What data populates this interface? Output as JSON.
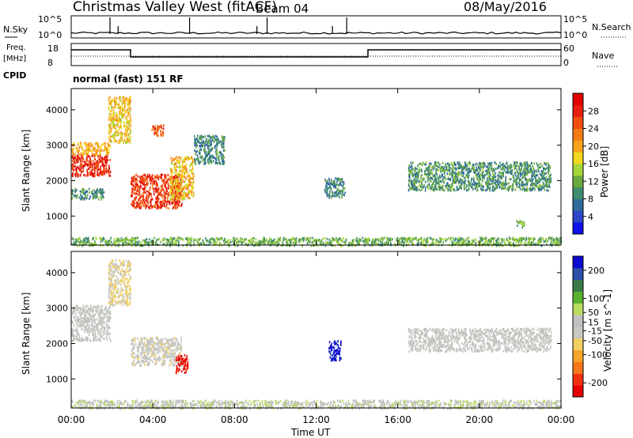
{
  "header": {
    "title": "Christmas Valley West (fitACF)",
    "beam": "Beam 04",
    "date": "08/May/2016"
  },
  "panels": {
    "sky": {
      "label": "N.Sky",
      "y_ticks": [
        "10^5",
        "10^0"
      ],
      "right_ticks": [
        "10^5",
        "10^0"
      ],
      "right_label": "N.Search"
    },
    "freq": {
      "label": "Freq.",
      "units": "[MHz]",
      "left_ticks": [
        "18",
        "8"
      ],
      "right_ticks": [
        "60",
        "0"
      ],
      "right_label": "Nave",
      "cpid_label": "CPID",
      "cpid_text": "normal (fast) 151 RF"
    }
  },
  "colors": {
    "power_scale": [
      "#1010e8",
      "#2c46c8",
      "#2f6a98",
      "#3f8c70",
      "#6aaa3e",
      "#a6d63a",
      "#f2d81e",
      "#f7a21c",
      "#f47a14",
      "#f24e0e",
      "#e81e0e",
      "#e00000"
    ],
    "velocity_scale": [
      "#e60000",
      "#f03010",
      "#f7781a",
      "#f7a428",
      "#f2d060",
      "#c8c8c0",
      "#c0c0c0",
      "#b8dc60",
      "#5ab030",
      "#3c7a46",
      "#2c50a8",
      "#0c0cd0"
    ]
  },
  "chart_data": [
    {
      "type": "heatmap",
      "title": "Power",
      "parameter": "Power",
      "ylabel": "Slant Range [km]",
      "yticks": [
        1000,
        2000,
        3000,
        4000
      ],
      "ylim": [
        180,
        4600
      ],
      "xlim": [
        0,
        24
      ],
      "colorbar": {
        "label": "Power [dB]",
        "ticks": [
          4,
          8,
          12,
          16,
          20,
          24,
          28
        ],
        "range": [
          0,
          32
        ]
      },
      "regions": [
        {
          "t": [
            0.0,
            1.9
          ],
          "r": [
            2150,
            2750
          ],
          "value": 28
        },
        {
          "t": [
            0.0,
            1.9
          ],
          "r": [
            2750,
            3100
          ],
          "value": 20
        },
        {
          "t": [
            0.0,
            1.6
          ],
          "r": [
            1500,
            1800
          ],
          "value": 9
        },
        {
          "t": [
            1.8,
            2.9
          ],
          "r": [
            3100,
            4400
          ],
          "value": 18
        },
        {
          "t": [
            2.9,
            5.4
          ],
          "r": [
            1250,
            2200
          ],
          "value": 27
        },
        {
          "t": [
            4.8,
            6.0
          ],
          "r": [
            1500,
            2700
          ],
          "value": 19
        },
        {
          "t": [
            3.9,
            4.5
          ],
          "r": [
            3300,
            3600
          ],
          "value": 25
        },
        {
          "t": [
            6.0,
            7.5
          ],
          "r": [
            2500,
            3300
          ],
          "value": 9
        },
        {
          "t": [
            12.4,
            13.4
          ],
          "r": [
            1550,
            2100
          ],
          "value": 9
        },
        {
          "t": [
            16.5,
            23.5
          ],
          "r": [
            1750,
            2550
          ],
          "value": 10
        },
        {
          "t": [
            21.8,
            22.2
          ],
          "r": [
            700,
            900
          ],
          "value": 13
        },
        {
          "t": [
            0.0,
            24.0
          ],
          "r": [
            190,
            420
          ],
          "value": 12
        }
      ]
    },
    {
      "type": "heatmap",
      "title": "Velocity",
      "parameter": "Velocity",
      "ylabel": "Slant Range [km]",
      "xlabel": "Time UT",
      "yticks": [
        1000,
        2000,
        3000,
        4000
      ],
      "ylim": [
        180,
        4600
      ],
      "xlim": [
        0,
        24
      ],
      "xticks": [
        "00:00",
        "04:00",
        "08:00",
        "12:00",
        "16:00",
        "20:00",
        "00:00"
      ],
      "colorbar": {
        "label": "Velocity [m s^-1]",
        "ticks": [
          200,
          100,
          50,
          15,
          -15,
          -50,
          -100,
          -200
        ],
        "range": [
          -250,
          250
        ]
      },
      "regions": [
        {
          "t": [
            0.0,
            1.9
          ],
          "r": [
            2100,
            3100
          ],
          "value": 0
        },
        {
          "t": [
            1.8,
            2.9
          ],
          "r": [
            3100,
            4400
          ],
          "value": -40
        },
        {
          "t": [
            2.9,
            5.4
          ],
          "r": [
            1400,
            2200
          ],
          "value": -20
        },
        {
          "t": [
            5.1,
            5.7
          ],
          "r": [
            1200,
            1700
          ],
          "value": -220
        },
        {
          "t": [
            12.6,
            13.2
          ],
          "r": [
            1550,
            2100
          ],
          "value": 230
        },
        {
          "t": [
            16.5,
            23.5
          ],
          "r": [
            1800,
            2450
          ],
          "value": 0
        },
        {
          "t": [
            0.0,
            24.0
          ],
          "r": [
            190,
            420
          ],
          "value": 30
        }
      ]
    }
  ]
}
